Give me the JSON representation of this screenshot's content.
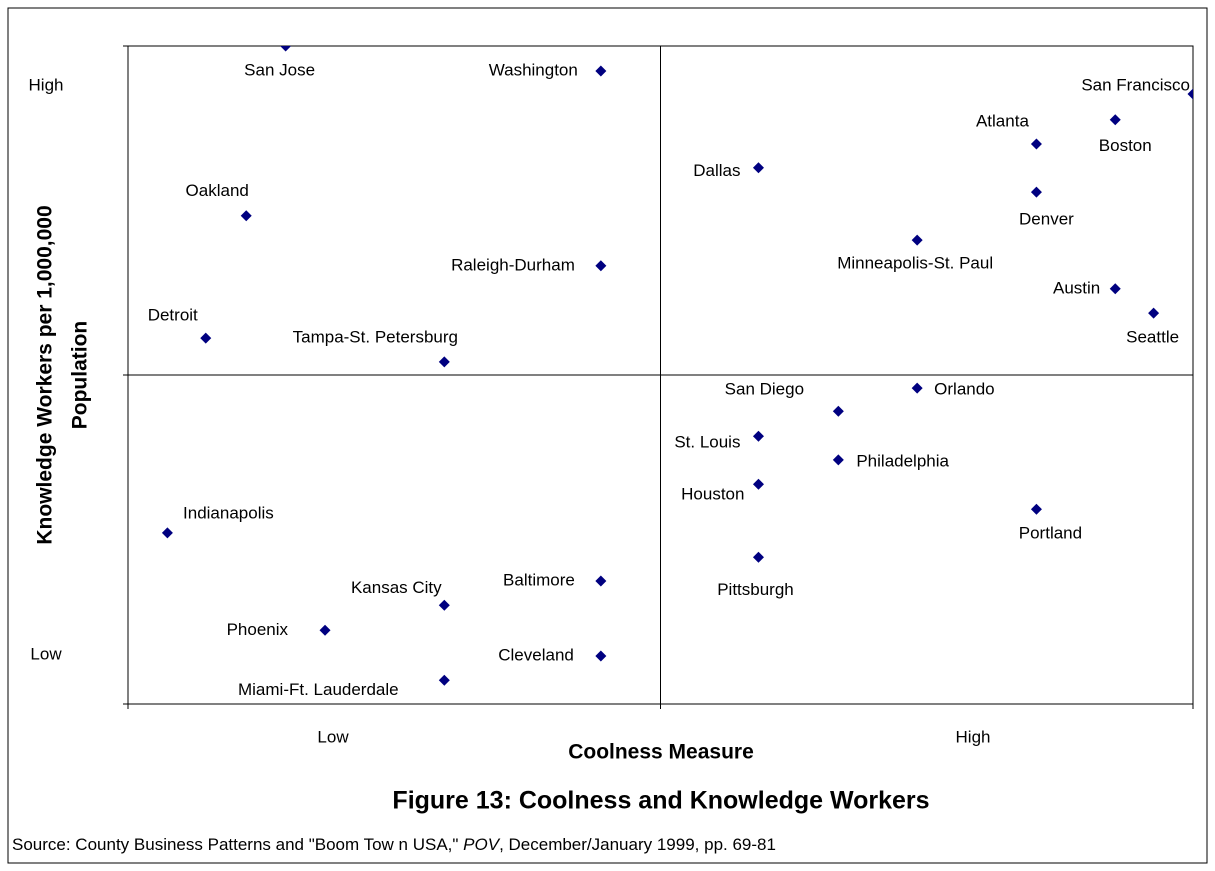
{
  "chart_data": {
    "type": "scatter",
    "title": "Figure 13: Coolness and Knowledge Workers",
    "xlabel": "Coolness Measure",
    "ylabel": [
      "Knowledge Workers per 1,000,000",
      "Population"
    ],
    "x_level_labels": [
      "Low",
      "High"
    ],
    "y_level_labels": [
      "Low",
      "High"
    ],
    "source": [
      "Source: County Business Patterns and \"Boom Tow n USA,\" ",
      "POV",
      ", December/January 1999, pp. 69-81"
    ],
    "xlim": [
      0,
      10
    ],
    "ylim": [
      0,
      10
    ],
    "quadrants": true,
    "color": "#000080",
    "labels": [
      "San Jose",
      "Washington",
      "San Francisco",
      "Boston",
      "Atlanta",
      "Dallas",
      "Denver",
      "Oakland",
      "Minneapolis-St. Paul",
      "Raleigh-Durham",
      "Austin",
      "Seattle",
      "Detroit",
      "Tampa-St. Petersburg",
      "Orlando",
      "San Diego",
      "St. Louis",
      "Philadelphia",
      "Houston",
      "Portland",
      "Indianapolis",
      "Pittsburgh",
      "Baltimore",
      "Kansas City",
      "Phoenix",
      "Cleveland",
      "Miami-Ft. Lauderdale"
    ],
    "x": [
      1.48,
      4.44,
      10,
      9.27,
      8.53,
      5.92,
      8.53,
      1.11,
      7.41,
      4.44,
      9.27,
      9.63,
      0.73,
      2.97,
      7.41,
      6.67,
      5.92,
      6.67,
      5.92,
      8.53,
      0.37,
      5.92,
      4.44,
      2.97,
      1.85,
      4.44,
      2.97
    ],
    "y": [
      10,
      9.62,
      9.27,
      8.88,
      8.51,
      8.15,
      7.78,
      7.42,
      7.05,
      6.66,
      6.31,
      5.94,
      5.56,
      5.2,
      4.8,
      4.45,
      4.07,
      3.71,
      3.34,
      2.96,
      2.6,
      2.23,
      1.87,
      1.5,
      1.12,
      0.73,
      0.36
    ]
  }
}
